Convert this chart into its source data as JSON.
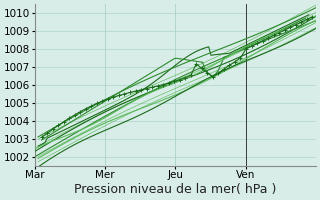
{
  "title": "",
  "xlabel": "Pression niveau de la mer( hPa )",
  "ylabel": "",
  "xlim": [
    0,
    4.0
  ],
  "ylim": [
    1001.5,
    1010.5
  ],
  "yticks": [
    1002,
    1003,
    1004,
    1005,
    1006,
    1007,
    1008,
    1009,
    1010
  ],
  "xtick_labels": [
    "Mar",
    "Mer",
    "Jeu",
    "Ven"
  ],
  "xtick_positions": [
    0,
    1,
    2,
    3
  ],
  "vline_positions": [
    0,
    1,
    2,
    3
  ],
  "bg_color": "#d8ede8",
  "grid_color": "#aed4cc",
  "line_color_dark": "#1a6b1a",
  "line_color_mid": "#2d8a2d",
  "line_color_light": "#5ab85a",
  "xlabel_fontsize": 9,
  "tick_fontsize": 7.5
}
